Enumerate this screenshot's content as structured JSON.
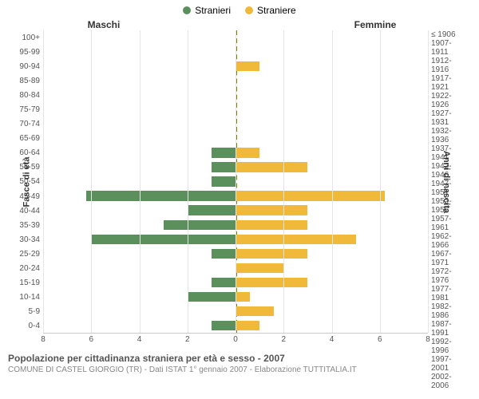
{
  "chart": {
    "type": "population-pyramid",
    "legend": {
      "male": {
        "label": "Stranieri",
        "color": "#5b8f5b"
      },
      "female": {
        "label": "Straniere",
        "color": "#f0b93a"
      }
    },
    "column_headers": {
      "male": "Maschi",
      "female": "Femmine"
    },
    "y_left_title": "Fasce di età",
    "y_right_title": "Anni di nascita",
    "x_max": 8,
    "x_ticks": [
      8,
      6,
      4,
      2,
      0,
      2,
      4,
      6,
      8
    ],
    "grid_color": "#e5e5e5",
    "center_line_color": "#808000",
    "background_color": "#ffffff",
    "bar_height_ratio": 0.68,
    "rows": [
      {
        "age": "100+",
        "birth": "≤ 1906",
        "m": 0,
        "f": 0
      },
      {
        "age": "95-99",
        "birth": "1907-1911",
        "m": 0,
        "f": 0
      },
      {
        "age": "90-94",
        "birth": "1912-1916",
        "m": 0,
        "f": 1
      },
      {
        "age": "85-89",
        "birth": "1917-1921",
        "m": 0,
        "f": 0
      },
      {
        "age": "80-84",
        "birth": "1922-1926",
        "m": 0,
        "f": 0
      },
      {
        "age": "75-79",
        "birth": "1927-1931",
        "m": 0,
        "f": 0
      },
      {
        "age": "70-74",
        "birth": "1932-1936",
        "m": 0,
        "f": 0
      },
      {
        "age": "65-69",
        "birth": "1937-1941",
        "m": 0,
        "f": 0
      },
      {
        "age": "60-64",
        "birth": "1942-1946",
        "m": 1,
        "f": 1
      },
      {
        "age": "55-59",
        "birth": "1947-1951",
        "m": 1,
        "f": 3
      },
      {
        "age": "50-54",
        "birth": "1952-1956",
        "m": 1,
        "f": 0
      },
      {
        "age": "45-49",
        "birth": "1957-1961",
        "m": 6.2,
        "f": 6.2
      },
      {
        "age": "40-44",
        "birth": "1962-1966",
        "m": 2,
        "f": 3
      },
      {
        "age": "35-39",
        "birth": "1967-1971",
        "m": 3,
        "f": 3
      },
      {
        "age": "30-34",
        "birth": "1972-1976",
        "m": 6,
        "f": 5
      },
      {
        "age": "25-29",
        "birth": "1977-1981",
        "m": 1,
        "f": 3
      },
      {
        "age": "20-24",
        "birth": "1982-1986",
        "m": 0,
        "f": 2
      },
      {
        "age": "15-19",
        "birth": "1987-1991",
        "m": 1,
        "f": 3
      },
      {
        "age": "10-14",
        "birth": "1992-1996",
        "m": 2,
        "f": 0.6
      },
      {
        "age": "5-9",
        "birth": "1997-2001",
        "m": 0,
        "f": 1.6
      },
      {
        "age": "0-4",
        "birth": "2002-2006",
        "m": 1,
        "f": 1
      }
    ]
  },
  "caption": {
    "title": "Popolazione per cittadinanza straniera per età e sesso - 2007",
    "subtitle": "COMUNE DI CASTEL GIORGIO (TR) - Dati ISTAT 1° gennaio 2007 - Elaborazione TUTTITALIA.IT"
  }
}
